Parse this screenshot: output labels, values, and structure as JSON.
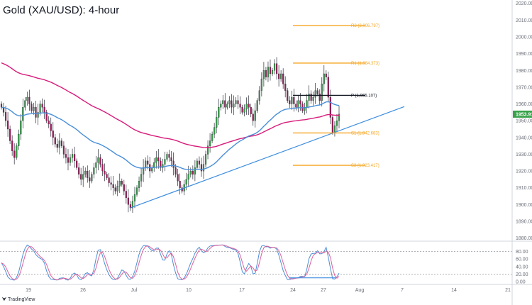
{
  "chart_data": {
    "type": "candlestick",
    "title": "Gold (XAU/USD): 4-hour",
    "price_axis": {
      "ticks": [
        "2020.000",
        "2010.000",
        "2000.000",
        "1990.000",
        "1980.000",
        "1970.000",
        "1960.000",
        "1950.000",
        "1940.000",
        "1930.000",
        "1920.000",
        "1910.000",
        "1900.000",
        "1890.000",
        "1880.000"
      ],
      "range": [
        1879,
        2022
      ]
    },
    "last_price_label": "1953.91",
    "x_axis": {
      "labels": [
        "19",
        "26",
        "Jul",
        "10",
        "17",
        "24",
        "27",
        "Aug",
        "7",
        "14",
        "21"
      ]
    },
    "pivot_levels": [
      {
        "label": "R2 (2,006.797)",
        "value": 2006.797,
        "color": "#f5a623"
      },
      {
        "label": "R1 (1,984.373)",
        "value": 1984.373,
        "color": "#f5a623"
      },
      {
        "label": "P (1,965.107)",
        "value": 1965.107,
        "color": "#131722"
      },
      {
        "label": "S1 (1,942.683)",
        "value": 1942.683,
        "color": "#f5a623"
      },
      {
        "label": "S2 (1,923.417)",
        "value": 1923.417,
        "color": "#f5a623"
      }
    ],
    "closes": [
      1958,
      1955,
      1950,
      1945,
      1938,
      1932,
      1928,
      1935,
      1942,
      1950,
      1958,
      1962,
      1964,
      1960,
      1956,
      1958,
      1952,
      1955,
      1960,
      1958,
      1955,
      1950,
      1948,
      1944,
      1940,
      1936,
      1934,
      1938,
      1935,
      1930,
      1928,
      1925,
      1928,
      1930,
      1926,
      1922,
      1918,
      1915,
      1918,
      1920,
      1916,
      1914,
      1918,
      1922,
      1925,
      1928,
      1924,
      1920,
      1918,
      1916,
      1913,
      1912,
      1910,
      1908,
      1911,
      1914,
      1912,
      1908,
      1904,
      1900,
      1898,
      1902,
      1906,
      1910,
      1914,
      1918,
      1922,
      1926,
      1924,
      1920,
      1922,
      1925,
      1928,
      1926,
      1922,
      1924,
      1927,
      1930,
      1928,
      1926,
      1922,
      1918,
      1914,
      1910,
      1908,
      1912,
      1915,
      1918,
      1920,
      1918,
      1922,
      1926,
      1924,
      1920,
      1924,
      1930,
      1935,
      1938,
      1942,
      1946,
      1952,
      1958,
      1960,
      1962,
      1958,
      1960,
      1962,
      1958,
      1960,
      1962,
      1960,
      1958,
      1955,
      1957,
      1960,
      1958,
      1954,
      1950,
      1956,
      1962,
      1968,
      1975,
      1980,
      1976,
      1982,
      1978,
      1980,
      1984,
      1978,
      1975,
      1978,
      1972,
      1968,
      1962,
      1960,
      1964,
      1960,
      1958,
      1962,
      1960,
      1956,
      1958,
      1962,
      1966,
      1962,
      1964,
      1968,
      1966,
      1962,
      1972,
      1978,
      1976,
      1964,
      1952,
      1943,
      1947,
      1950,
      1953.91
    ],
    "ma_200_start": 1985,
    "ma_100_start": 1958,
    "trendline": {
      "from": 1898,
      "to_at_last_bar": 1944,
      "to_extended": 1957
    },
    "stochastic": {
      "ticks": [
        "80.00",
        "60.00",
        "40.00",
        "20.00",
        "0.00"
      ],
      "overbought": 80,
      "oversold": 20
    }
  },
  "branding": {
    "logo": "TradingView"
  }
}
